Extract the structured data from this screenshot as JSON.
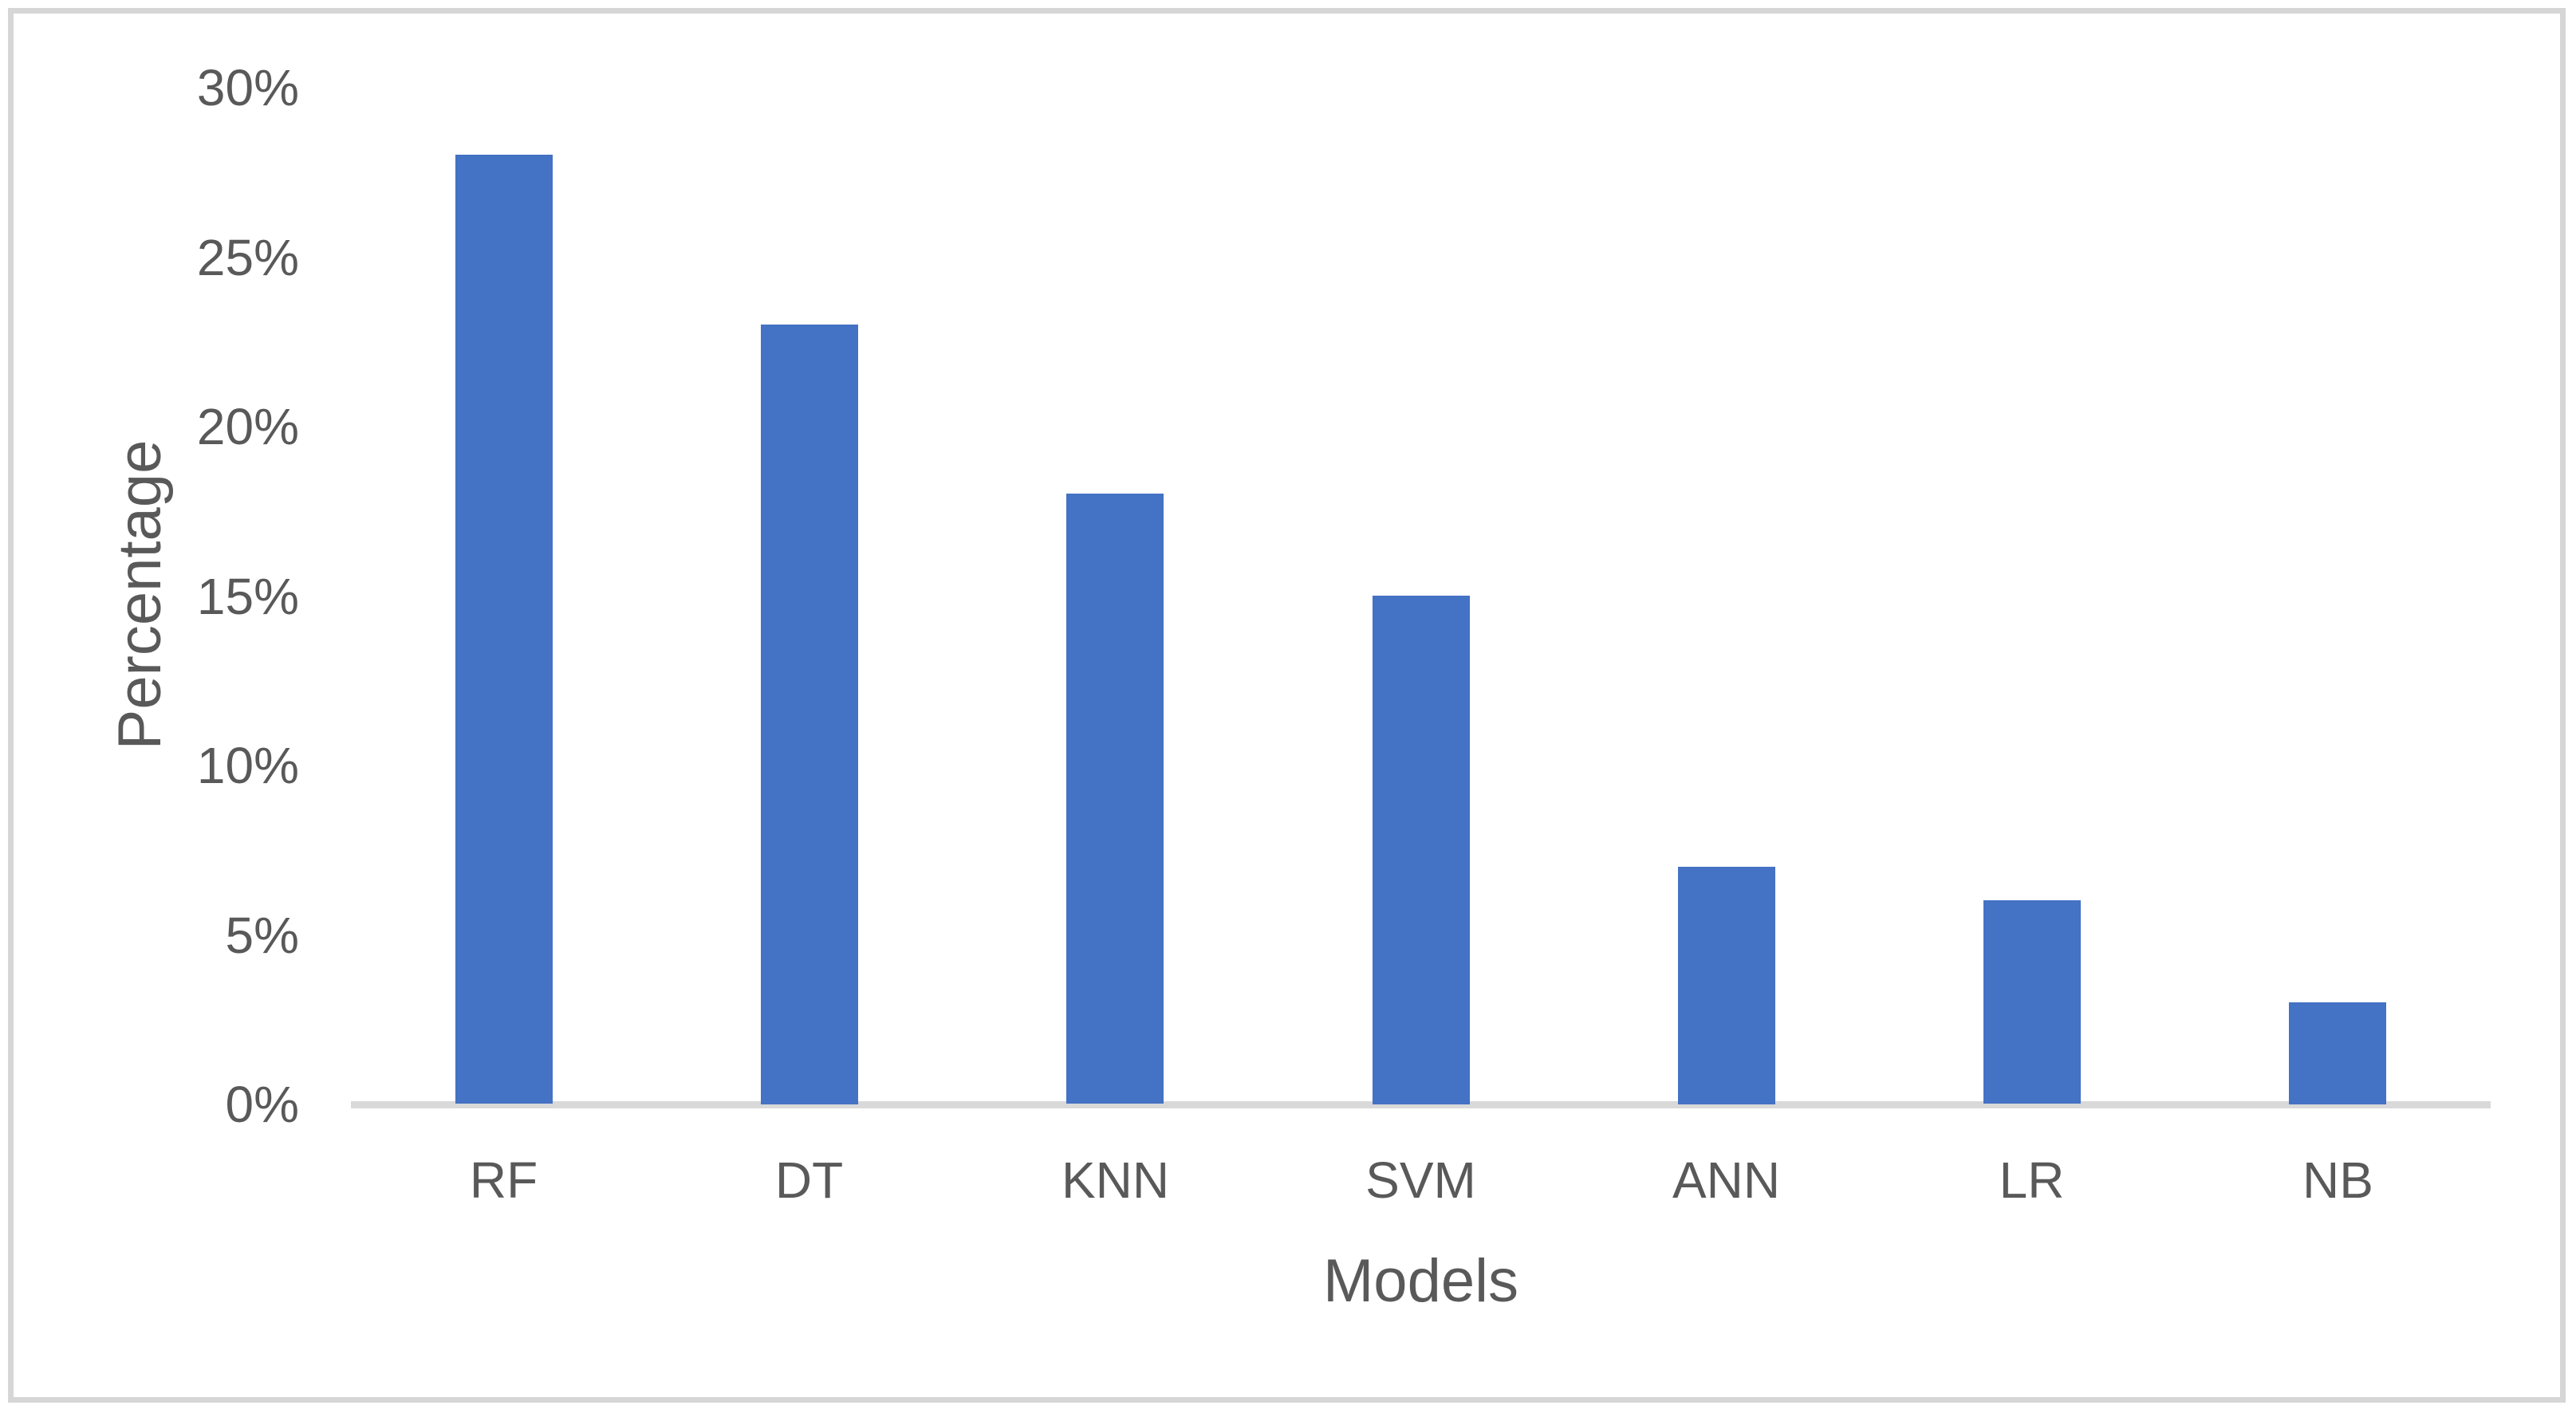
{
  "chart_data": {
    "type": "bar",
    "categories": [
      "RF",
      "DT",
      "KNN",
      "SVM",
      "ANN",
      "LR",
      "NB"
    ],
    "values": [
      28,
      23,
      18,
      15,
      7,
      6,
      3
    ],
    "title": "",
    "xlabel": "Models",
    "ylabel": "Percentage",
    "ylim": [
      0,
      30
    ],
    "ytick_step": 5,
    "ytick_labels": [
      "0%",
      "5%",
      "10%",
      "15%",
      "20%",
      "25%",
      "30%"
    ],
    "grid": false,
    "legend": false,
    "bar_color": "#4472C4",
    "label_color": "#595959",
    "axis_line_color": "#D9D9D9",
    "frame_border_color": "#D6D6D6"
  }
}
